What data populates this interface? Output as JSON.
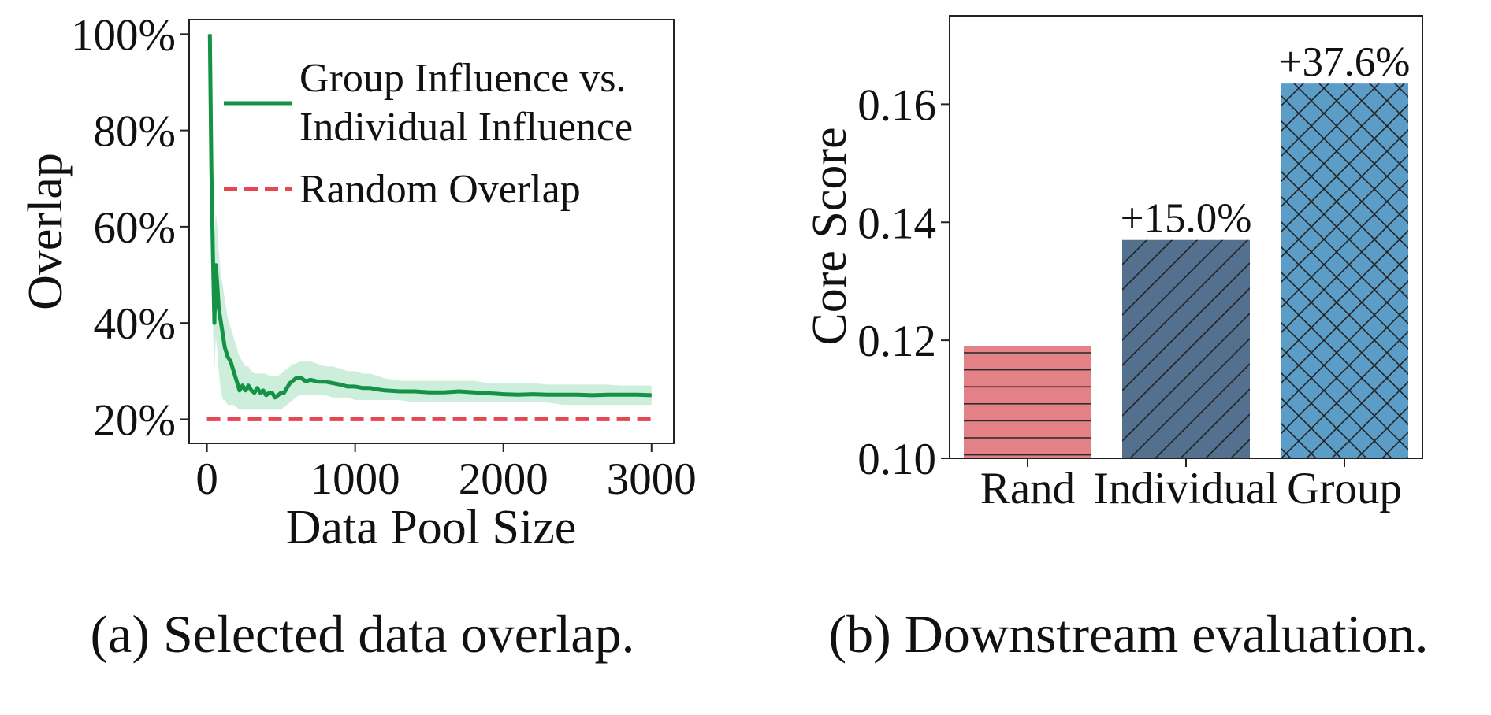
{
  "chart_data": [
    {
      "type": "line",
      "xlabel": "Data Pool Size",
      "ylabel": "Overlap",
      "xlim": [
        -120,
        3150
      ],
      "ylim": [
        15,
        103
      ],
      "xticks": [
        0,
        1000,
        2000,
        3000
      ],
      "xtick_labels": [
        "0",
        "1000",
        "2000",
        "3000"
      ],
      "yticks": [
        20,
        40,
        60,
        80,
        100
      ],
      "ytick_labels": [
        "20%",
        "40%",
        "60%",
        "80%",
        "100%"
      ],
      "grid": false,
      "legend_position": "top-right",
      "series": [
        {
          "name": "Group Influence vs. Individual Influence",
          "style": "solid",
          "color": "#149246",
          "band_color": "#cdeedb",
          "x": [
            20,
            30,
            40,
            50,
            60,
            70,
            80,
            90,
            100,
            110,
            120,
            140,
            160,
            180,
            200,
            220,
            240,
            260,
            280,
            300,
            320,
            340,
            360,
            380,
            400,
            420,
            440,
            460,
            480,
            500,
            520,
            540,
            560,
            580,
            600,
            620,
            640,
            660,
            680,
            700,
            750,
            800,
            850,
            900,
            950,
            1000,
            1050,
            1100,
            1150,
            1200,
            1300,
            1400,
            1500,
            1600,
            1700,
            1800,
            1900,
            2000,
            2100,
            2200,
            2300,
            2400,
            2500,
            2600,
            2700,
            2800,
            2900,
            3000
          ],
          "y": [
            100,
            72,
            55,
            40,
            52,
            48,
            43,
            41,
            39,
            37,
            35,
            33,
            32,
            30,
            28,
            26,
            27,
            26,
            27,
            26,
            25.5,
            26.5,
            25.5,
            26,
            25,
            25.5,
            25.5,
            24.5,
            25,
            25.5,
            25.5,
            26.5,
            27.5,
            28,
            28.5,
            28.5,
            28.5,
            28,
            28,
            28.2,
            27.8,
            27.8,
            27.5,
            27.2,
            26.8,
            26.8,
            26.5,
            26.5,
            26.2,
            26,
            25.8,
            25.8,
            25.6,
            25.6,
            25.8,
            25.6,
            25.4,
            25.2,
            25.1,
            25.2,
            25.1,
            25.1,
            25.1,
            25.0,
            25.1,
            25.1,
            25.1,
            25.0
          ],
          "lower": [
            100,
            50,
            40,
            30,
            37,
            34,
            30,
            27,
            25,
            24,
            24,
            23,
            23,
            23,
            22.5,
            22,
            22,
            22,
            22,
            22,
            22,
            22,
            22,
            22,
            22,
            22,
            22,
            22,
            22,
            22,
            22.5,
            23,
            23.5,
            24,
            24.5,
            25,
            25,
            25,
            25,
            25,
            25,
            25,
            24.5,
            24.5,
            24.5,
            24,
            24,
            24,
            24,
            24,
            24,
            23.5,
            23.5,
            23.5,
            23.5,
            23.5,
            23.5,
            23.5,
            23.5,
            23.5,
            23.5,
            23,
            23,
            23,
            23,
            23,
            23,
            23
          ],
          "upper": [
            100,
            85,
            70,
            58,
            63,
            60,
            55,
            51,
            49,
            47,
            45,
            41,
            39,
            37,
            35,
            33,
            32,
            31,
            31,
            30,
            29.5,
            29.5,
            29.5,
            29.5,
            29.5,
            29,
            29,
            29,
            29,
            29.5,
            30,
            30.5,
            31,
            31.5,
            31.5,
            32,
            32,
            32,
            32,
            32,
            31.5,
            31,
            31,
            30.5,
            30,
            30,
            29.5,
            29.5,
            29,
            28.5,
            28,
            28,
            28,
            28,
            28,
            28,
            27.5,
            27.5,
            27.5,
            27.5,
            27.2,
            27.2,
            27.2,
            27.2,
            27.2,
            27,
            27,
            27
          ]
        },
        {
          "name": "Random Overlap",
          "style": "dashed",
          "color": "#e64553",
          "x": [
            0,
            3000
          ],
          "y": [
            20,
            20
          ]
        }
      ],
      "caption": "(a) Selected data overlap."
    },
    {
      "type": "bar",
      "categories": [
        "Rand",
        "Individual",
        "Group"
      ],
      "values": [
        0.119,
        0.137,
        0.1635
      ],
      "value_labels": [
        "",
        "+15.0%",
        "+37.6%"
      ],
      "colors": [
        "#e38187",
        "#53708f",
        "#5b9dc6"
      ],
      "hatches": [
        "horizontal",
        "diagonal",
        "cross"
      ],
      "ylabel": "Core Score",
      "xlabel": "",
      "ylim": [
        0.1,
        0.175
      ],
      "yticks": [
        0.1,
        0.12,
        0.14,
        0.16
      ],
      "ytick_labels": [
        "0.10",
        "0.12",
        "0.14",
        "0.16"
      ],
      "grid": false,
      "caption": "(b) Downstream evaluation."
    }
  ]
}
